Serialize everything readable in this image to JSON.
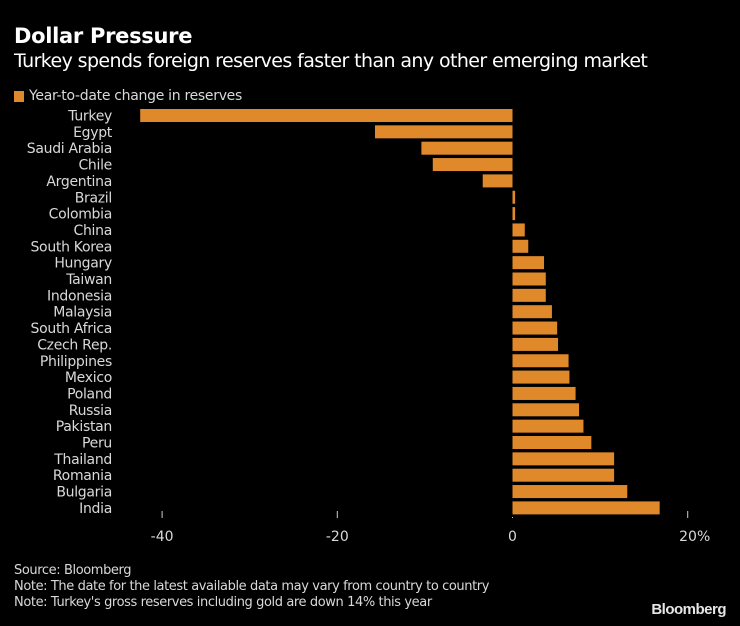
{
  "chart_data": {
    "type": "bar",
    "orientation": "horizontal",
    "title": "Dollar Pressure",
    "subtitle": "Turkey spends foreign reserves faster than any other emerging market",
    "legend": [
      {
        "name": "Year-to-date change in reserves",
        "color": "#E0892A"
      }
    ],
    "legend_position": "top-left",
    "categories": [
      "Turkey",
      "Egypt",
      "Saudi Arabia",
      "Chile",
      "Argentina",
      "Brazil",
      "Colombia",
      "China",
      "South Korea",
      "Hungary",
      "Taiwan",
      "Indonesia",
      "Malaysia",
      "South Africa",
      "Czech Rep.",
      "Philippines",
      "Mexico",
      "Poland",
      "Russia",
      "Pakistan",
      "Peru",
      "Thailand",
      "Romania",
      "Bulgaria",
      "India"
    ],
    "series": [
      {
        "name": "Year-to-date change in reserves",
        "color": "#E0892A",
        "values": [
          -42.5,
          -15.7,
          -10.4,
          -9.1,
          -3.4,
          0.3,
          0.3,
          1.4,
          1.8,
          3.6,
          3.8,
          3.8,
          4.5,
          5.1,
          5.2,
          6.4,
          6.5,
          7.2,
          7.6,
          8.1,
          9.0,
          11.6,
          11.6,
          13.1,
          16.8
        ]
      }
    ],
    "xlabel": "",
    "ylabel": "",
    "xlim": [
      -42.5,
      20
    ],
    "x_ticks": [
      -40,
      -20,
      0,
      20
    ],
    "x_tick_labels": [
      "-40",
      "-20",
      "0",
      "20%"
    ],
    "grid": false
  },
  "footer": {
    "source": "Source: Bloomberg",
    "note1": "Note: The date for the latest available data may vary from country to country",
    "note2": "Note: Turkey's gross reserves including gold are down 14% this year"
  },
  "brand": "Bloomberg"
}
